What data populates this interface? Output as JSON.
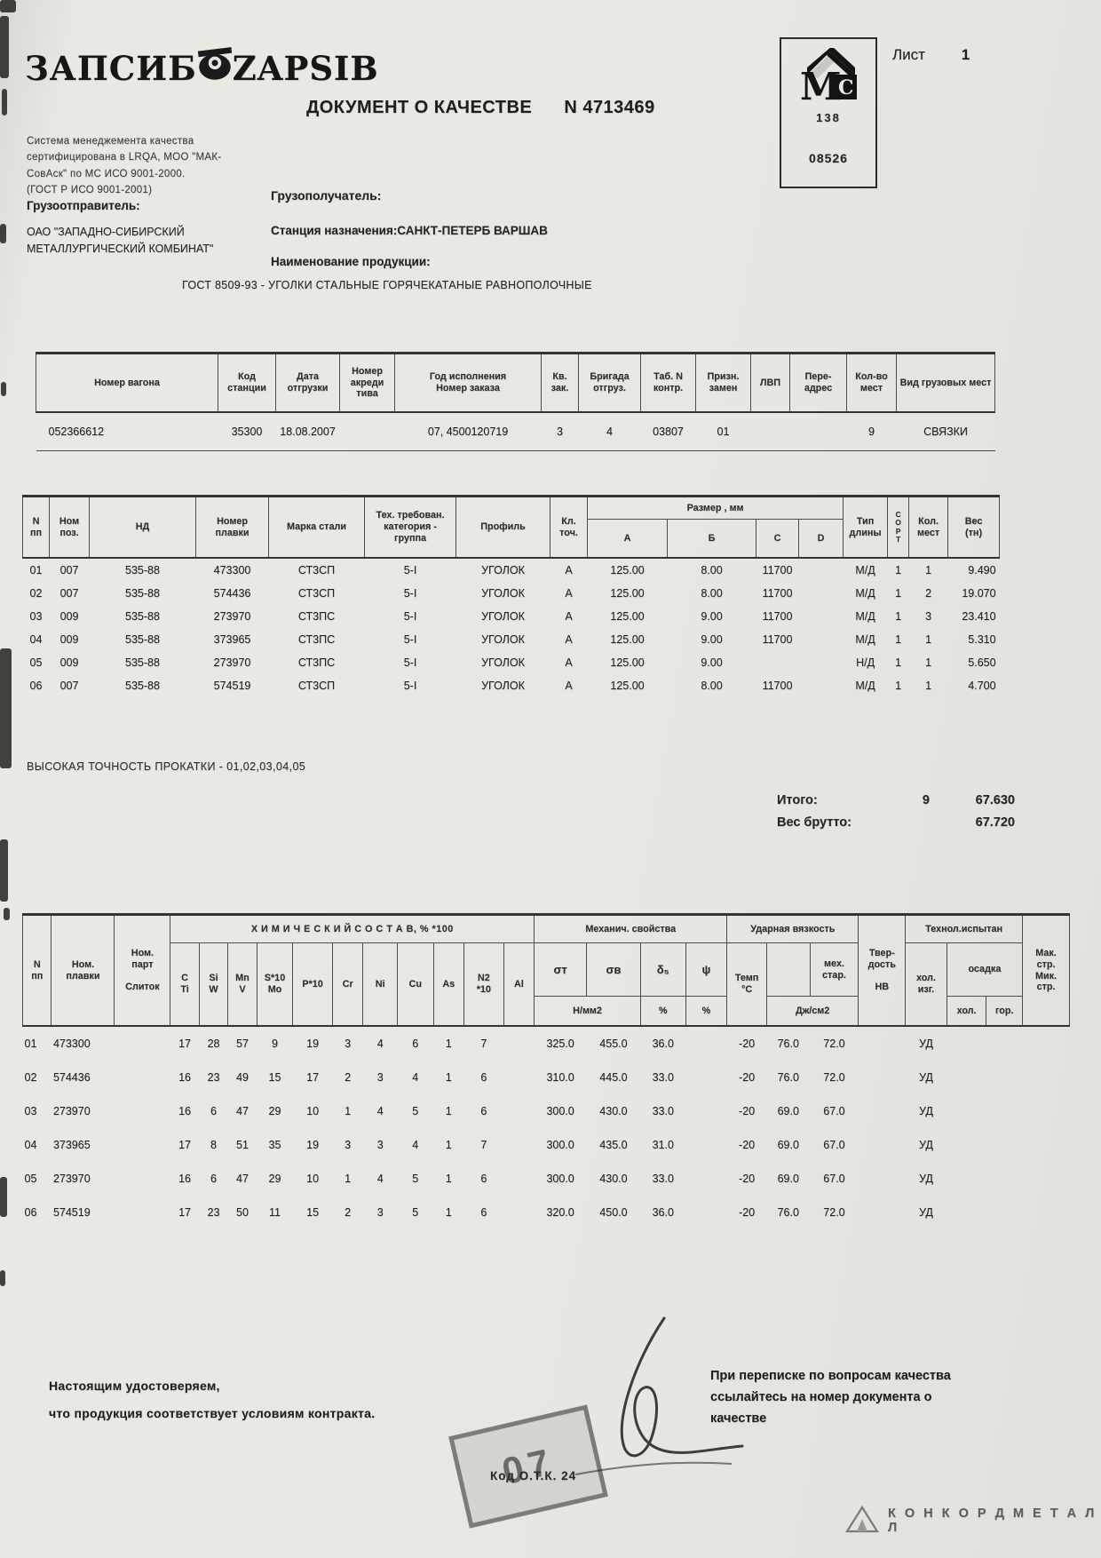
{
  "page": {
    "sheet_label": "Лист",
    "sheet_number": "1"
  },
  "logo": {
    "text_left": "ЗАПСИБ",
    "text_right": "ZAPSIB",
    "cert_lines": [
      "Система  менеджемента   качества",
      "сертифицирована в LRQA, МОО \"МАК-",
      "СовАск\"  по  МС  ИСО   9001-2000.",
      "(ГОСТ Р ИСО 9001-2001)"
    ]
  },
  "title": {
    "label": "ДОКУМЕНТ О КАЧЕСТВЕ",
    "number": "N  4713469"
  },
  "stamp": {
    "num_top": "138",
    "num_bottom": "08526"
  },
  "parties": {
    "shipper_label": "Грузоотправитель:",
    "shipper_line1": "ОАО \"ЗАПАДНО-СИБИРСКИЙ",
    "shipper_line2": "МЕТАЛЛУРГИЧЕСКИЙ КОМБИНАТ\"",
    "consignee_label": "Грузополучатель:",
    "station_label": "Станция назначения:",
    "station_value": "САНКТ-ПЕТЕРБ ВАРШАВ",
    "product_label": "Наименование   продукции:",
    "product_value": "ГОСТ 8509-93  -  УГОЛКИ СТАЛЬНЫЕ ГОРЯЧЕКАТАНЫЕ РАВНОПОЛОЧНЫЕ"
  },
  "wagon_table": {
    "headers": {
      "wagon": "Номер вагона",
      "station_code": "Код\nстанции",
      "ship_date": "Дата\nотгрузки",
      "letter_of_credit": "Номер\nакреди\nтива",
      "order": "Год исполнения\nНомер заказа",
      "kv": "Кв.\nзак.",
      "brigade": "Бригада\nотгруз.",
      "tab": "Таб. N\nконтр.",
      "sign": "Призн.\nзамен",
      "lvp": "ЛВП",
      "readdress": "Пере-\nадрес",
      "places": "Кол-во\nмест",
      "cargo_type": "Вид  грузовых  мест"
    },
    "rows": [
      {
        "wagon": "052366612",
        "station_code": "35300",
        "ship_date": "18.08.2007",
        "letter_of_credit": "",
        "order": "07, 4500120719",
        "kv": "3",
        "brigade": "4",
        "tab": "03807",
        "sign": "01",
        "lvp": "",
        "readdress": "",
        "places": "9",
        "cargo_type": "СВЯЗКИ"
      }
    ]
  },
  "heat_table": {
    "headers": {
      "num": "N\nпп",
      "pos": "Ном\nпоз.",
      "nd": "НД",
      "heat": "Номер\nплавки",
      "grade": "Марка стали",
      "cat": "Тех. требован.\nкатегория -\nгруппа",
      "profile": "Профиль",
      "cls": "Кл.\nточ.",
      "size_group": "Размер , мм",
      "a": "А",
      "b": "Б",
      "c": "С",
      "d": "D",
      "len_type": "Тип\nдлины",
      "sort": "С\nО\nР\nТ",
      "places": "Кол.\nмест",
      "weight": "Вес\n(тн)"
    },
    "rows": [
      {
        "num": "01",
        "pos": "007",
        "nd": "535-88",
        "heat": "473300",
        "grade": "СТ3СП",
        "cat": "5-I",
        "profile": "УГОЛОК",
        "cls": "А",
        "a": "125.00",
        "b": "8.00",
        "c": "11700",
        "d": "",
        "len_type": "М/Д",
        "sort": "1",
        "places": "1",
        "weight": "9.490"
      },
      {
        "num": "02",
        "pos": "007",
        "nd": "535-88",
        "heat": "574436",
        "grade": "СТ3СП",
        "cat": "5-I",
        "profile": "УГОЛОК",
        "cls": "А",
        "a": "125.00",
        "b": "8.00",
        "c": "11700",
        "d": "",
        "len_type": "М/Д",
        "sort": "1",
        "places": "2",
        "weight": "19.070"
      },
      {
        "num": "03",
        "pos": "009",
        "nd": "535-88",
        "heat": "273970",
        "grade": "СТ3ПС",
        "cat": "5-I",
        "profile": "УГОЛОК",
        "cls": "А",
        "a": "125.00",
        "b": "9.00",
        "c": "11700",
        "d": "",
        "len_type": "М/Д",
        "sort": "1",
        "places": "3",
        "weight": "23.410"
      },
      {
        "num": "04",
        "pos": "009",
        "nd": "535-88",
        "heat": "373965",
        "grade": "СТ3ПС",
        "cat": "5-I",
        "profile": "УГОЛОК",
        "cls": "А",
        "a": "125.00",
        "b": "9.00",
        "c": "11700",
        "d": "",
        "len_type": "М/Д",
        "sort": "1",
        "places": "1",
        "weight": "5.310"
      },
      {
        "num": "05",
        "pos": "009",
        "nd": "535-88",
        "heat": "273970",
        "grade": "СТ3ПС",
        "cat": "5-I",
        "profile": "УГОЛОК",
        "cls": "А",
        "a": "125.00",
        "b": "9.00",
        "c": "",
        "d": "",
        "len_type": "Н/Д",
        "sort": "1",
        "places": "1",
        "weight": "5.650"
      },
      {
        "num": "06",
        "pos": "007",
        "nd": "535-88",
        "heat": "574519",
        "grade": "СТ3СП",
        "cat": "5-I",
        "profile": "УГОЛОК",
        "cls": "А",
        "a": "125.00",
        "b": "8.00",
        "c": "11700",
        "d": "",
        "len_type": "М/Д",
        "sort": "1",
        "places": "1",
        "weight": "4.700"
      }
    ]
  },
  "totals": {
    "label": "Итого:",
    "places": "9",
    "weight": "67.630",
    "gross_label": "Вес брутто:",
    "gross_weight": "67.720"
  },
  "precision_note": "ВЫСОКАЯ ТОЧНОСТЬ ПРОКАТКИ   - 01,02,03,04,05",
  "chem_table": {
    "headers": {
      "num": "N\nпп",
      "heat": "Ном.\nплавки",
      "part": "Ном.\nпарт\n\nСлиток",
      "chem_group": "Х И М И Ч Е С К И Й   С О С Т А В, %  *100",
      "mech_group": "Механич. свойства",
      "impact_group": "Ударная вязкость",
      "hardness": "Твер-\nдость\n\nНВ",
      "tech_group": "Технол.испытан",
      "mak": "Мак.\nстр.\nМик.\nстр.",
      "c": "C\nTi",
      "si": "Si\nW",
      "mn": "Mn\nV",
      "s": "S*10\nMo",
      "p": "P*10",
      "cr": "Cr",
      "ni": "Ni",
      "cu": "Cu",
      "as": "As",
      "n2": "N2\n*10",
      "al": "Al",
      "st": "σт",
      "sv": "σв",
      "d5": "δ₅",
      "psi": "ψ",
      "nmm": "Н/мм2",
      "pct1": "%",
      "pct2": "%",
      "temp": "Темп\n°С",
      "ms": "мех.\nстар.",
      "j": "Дж/см2",
      "hi": "хол.\nизг.",
      "osadka": "осадка",
      "oh": "хол.",
      "og": "гор."
    },
    "rows": [
      {
        "num": "01",
        "heat": "473300",
        "part": "",
        "c": "17",
        "si": "28",
        "mn": "57",
        "s": "9",
        "p": "19",
        "cr": "3",
        "ni": "4",
        "cu": "6",
        "as": "1",
        "n2": "7",
        "al": "",
        "st": "325.0",
        "sv": "455.0",
        "d5": "36.0",
        "psi": "",
        "temp": "-20",
        "kcu": "76.0",
        "ms": "72.0",
        "hb": "",
        "hi": "УД",
        "oh": "",
        "og": "",
        "mak": ""
      },
      {
        "num": "02",
        "heat": "574436",
        "part": "",
        "c": "16",
        "si": "23",
        "mn": "49",
        "s": "15",
        "p": "17",
        "cr": "2",
        "ni": "3",
        "cu": "4",
        "as": "1",
        "n2": "6",
        "al": "",
        "st": "310.0",
        "sv": "445.0",
        "d5": "33.0",
        "psi": "",
        "temp": "-20",
        "kcu": "76.0",
        "ms": "72.0",
        "hb": "",
        "hi": "УД",
        "oh": "",
        "og": "",
        "mak": ""
      },
      {
        "num": "03",
        "heat": "273970",
        "part": "",
        "c": "16",
        "si": "6",
        "mn": "47",
        "s": "29",
        "p": "10",
        "cr": "1",
        "ni": "4",
        "cu": "5",
        "as": "1",
        "n2": "6",
        "al": "",
        "st": "300.0",
        "sv": "430.0",
        "d5": "33.0",
        "psi": "",
        "temp": "-20",
        "kcu": "69.0",
        "ms": "67.0",
        "hb": "",
        "hi": "УД",
        "oh": "",
        "og": "",
        "mak": ""
      },
      {
        "num": "04",
        "heat": "373965",
        "part": "",
        "c": "17",
        "si": "8",
        "mn": "51",
        "s": "35",
        "p": "19",
        "cr": "3",
        "ni": "3",
        "cu": "4",
        "as": "1",
        "n2": "7",
        "al": "",
        "st": "300.0",
        "sv": "435.0",
        "d5": "31.0",
        "psi": "",
        "temp": "-20",
        "kcu": "69.0",
        "ms": "67.0",
        "hb": "",
        "hi": "УД",
        "oh": "",
        "og": "",
        "mak": ""
      },
      {
        "num": "05",
        "heat": "273970",
        "part": "",
        "c": "16",
        "si": "6",
        "mn": "47",
        "s": "29",
        "p": "10",
        "cr": "1",
        "ni": "4",
        "cu": "5",
        "as": "1",
        "n2": "6",
        "al": "",
        "st": "300.0",
        "sv": "430.0",
        "d5": "33.0",
        "psi": "",
        "temp": "-20",
        "kcu": "69.0",
        "ms": "67.0",
        "hb": "",
        "hi": "УД",
        "oh": "",
        "og": "",
        "mak": ""
      },
      {
        "num": "06",
        "heat": "574519",
        "part": "",
        "c": "17",
        "si": "23",
        "mn": "50",
        "s": "11",
        "p": "15",
        "cr": "2",
        "ni": "3",
        "cu": "5",
        "as": "1",
        "n2": "6",
        "al": "",
        "st": "320.0",
        "sv": "450.0",
        "d5": "36.0",
        "psi": "",
        "temp": "-20",
        "kcu": "76.0",
        "ms": "72.0",
        "hb": "",
        "hi": "УД",
        "oh": "",
        "og": "",
        "mak": ""
      }
    ]
  },
  "footer": {
    "attest_line1": "Настоящим удостоверяем,",
    "attest_line2": "что продукция соответствует условиям контракта.",
    "otk_code": "Код  О.Т.К. 24",
    "stamp_digits": "07",
    "note_line1": "При переписке по вопросам качества",
    "note_line2": "ссылайтесь на номер документа о",
    "note_line3": "качестве",
    "brand": "К О Н К О Р Д М Е Т А Л Л"
  }
}
